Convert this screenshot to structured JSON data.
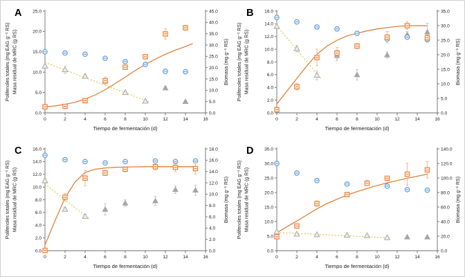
{
  "figure": {
    "x_title": "Tiempo de fermentación (d)",
    "y_left_title_line1": "Polifenoles totales (mg  EAG g⁻¹ RS)",
    "y_left_title_line2": "Masa residual de MRC (g RS)",
    "y_right_title": "Biomasa (mg g⁻¹ RS)"
  },
  "colors": {
    "blue": "#5B9BD5",
    "blue_fill": "#EAF1F9",
    "blue_err": "#9DC3E6",
    "orange": "#ED7D31",
    "orange_fill": "#FBEADC",
    "orange_err": "#F4B183",
    "trend": "#E0762C",
    "yellow_dash": "#E0CC4E",
    "gray_stroke": "#A8A8A8",
    "gray_open_fill": "#F1EFEA",
    "gray_fill": "#A8A6A2",
    "gray_err": "#C6C4C0",
    "axis": "#6b6b6b",
    "tick_text": "#1a1a1a"
  },
  "chart_data": [
    {
      "type": "scatter",
      "label": "A",
      "x_axis": {
        "min": 0,
        "max": 16,
        "step": 2
      },
      "y_left": {
        "min": 0,
        "max": 25,
        "step": 5
      },
      "y_right": {
        "min": 0,
        "max": 45,
        "step": 5
      },
      "dash_line": [
        [
          0,
          12.4
        ],
        [
          10.4,
          2.7
        ]
      ],
      "trend": [
        [
          0,
          1.5
        ],
        [
          1,
          1.7
        ],
        [
          2,
          2.1
        ],
        [
          3,
          2.6
        ],
        [
          4,
          3.4
        ],
        [
          5,
          4.4
        ],
        [
          6,
          5.7
        ],
        [
          7,
          7.2
        ],
        [
          8,
          8.8
        ],
        [
          9,
          10.4
        ],
        [
          10,
          11.9
        ],
        [
          11,
          13.2
        ],
        [
          12,
          14.4
        ],
        [
          13,
          15.4
        ],
        [
          14,
          16.3
        ],
        [
          14.7,
          17.0
        ]
      ],
      "series": [
        {
          "name": "open-triangles",
          "marker": "triangle-open",
          "axis": "left",
          "x": [
            0,
            2,
            4,
            6,
            8,
            10
          ],
          "y": [
            11.5,
            10.6,
            9.0,
            7.8,
            5.0,
            2.9
          ],
          "err": [
            0.5,
            0.9,
            0.4,
            0.4,
            0.4,
            0.3
          ]
        },
        {
          "name": "filled-triangles",
          "marker": "triangle-filled",
          "axis": "right",
          "x": [
            12,
            14
          ],
          "y": [
            11.0,
            5.0
          ],
          "err": [
            0.7,
            0.5
          ]
        },
        {
          "name": "blue-circles",
          "marker": "circle",
          "axis": "left",
          "x": [
            0,
            2,
            4,
            6,
            8,
            10,
            12,
            14
          ],
          "y": [
            15.0,
            14.7,
            14.4,
            13.4,
            12.6,
            11.9,
            10.2,
            10.1
          ],
          "err": [
            0.3,
            0.2,
            0.2,
            0.3,
            0.3,
            0.3,
            0.3,
            0.2
          ]
        },
        {
          "name": "orange-squares",
          "marker": "square",
          "axis": "left",
          "x": [
            0,
            2,
            4,
            6,
            8,
            10,
            12,
            14
          ],
          "y": [
            1.5,
            1.6,
            3.0,
            7.9,
            11.2,
            13.8,
            19.4,
            20.9
          ],
          "err": [
            0.3,
            0.2,
            0.3,
            0.9,
            0.5,
            0.6,
            1.3,
            0.6
          ]
        }
      ]
    },
    {
      "type": "scatter",
      "label": "B",
      "x_axis": {
        "min": 0,
        "max": 16,
        "step": 2
      },
      "y_left": {
        "min": 0,
        "max": 16,
        "step": 2
      },
      "y_right": {
        "min": 0,
        "max": 35,
        "step": 5
      },
      "dash_line": [
        [
          0,
          13.7
        ],
        [
          4.4,
          5.4
        ]
      ],
      "trend": [
        [
          0,
          1.4
        ],
        [
          1,
          3.4
        ],
        [
          2,
          5.4
        ],
        [
          3,
          7.4
        ],
        [
          4,
          9.2
        ],
        [
          5,
          10.5
        ],
        [
          6,
          11.4
        ],
        [
          7,
          12.1
        ],
        [
          8,
          12.5
        ],
        [
          9,
          12.9
        ],
        [
          10,
          13.2
        ],
        [
          11,
          13.4
        ],
        [
          12,
          13.6
        ],
        [
          13,
          13.7
        ],
        [
          14,
          13.7
        ],
        [
          15,
          13.7
        ]
      ],
      "series": [
        {
          "name": "open-triangles",
          "marker": "triangle-open",
          "axis": "left",
          "x": [
            0,
            2,
            4
          ],
          "y": [
            13.6,
            10.1,
            5.9
          ],
          "err": [
            0.4,
            0.5,
            0.7
          ]
        },
        {
          "name": "filled-triangles",
          "marker": "triangle-filled",
          "axis": "right",
          "x": [
            6,
            8,
            11,
            13,
            15
          ],
          "y": [
            19.7,
            13.1,
            19.9,
            26.9,
            27.8
          ],
          "err": [
            1.8,
            1.8,
            1.1,
            1.1,
            3.0
          ]
        },
        {
          "name": "blue-circles",
          "marker": "circle",
          "axis": "left",
          "x": [
            0,
            2,
            4,
            6,
            8,
            11,
            13,
            15
          ],
          "y": [
            15.0,
            14.3,
            13.5,
            13.2,
            12.5,
            11.6,
            11.9,
            11.5
          ],
          "err": [
            0.3,
            0.2,
            0.2,
            0.2,
            0.2,
            0.3,
            0.3,
            0.3
          ]
        },
        {
          "name": "orange-squares",
          "marker": "square",
          "axis": "left",
          "x": [
            0,
            2,
            4,
            6,
            8,
            11,
            13,
            15
          ],
          "y": [
            0.5,
            4.1,
            8.7,
            9.4,
            10.5,
            11.9,
            13.7,
            11.8
          ],
          "err": [
            0.2,
            0.5,
            1.3,
            0.9,
            0.4,
            0.9,
            0.6,
            0.5
          ]
        }
      ]
    },
    {
      "type": "scatter",
      "label": "C",
      "x_axis": {
        "min": 0,
        "max": 16,
        "step": 2
      },
      "y_left": {
        "min": 0,
        "max": 16,
        "step": 2
      },
      "y_right": {
        "min": 0,
        "max": 18,
        "step": 2
      },
      "dash_line": [
        [
          0,
          10.5
        ],
        [
          4.4,
          5.0
        ]
      ],
      "trend": [
        [
          0,
          0.9
        ],
        [
          1,
          4.7
        ],
        [
          2,
          8.3
        ],
        [
          3,
          10.8
        ],
        [
          4,
          12.3
        ],
        [
          5,
          12.8
        ],
        [
          6,
          13.0
        ],
        [
          7,
          13.1
        ],
        [
          8,
          13.15
        ],
        [
          10,
          13.2
        ],
        [
          12,
          13.2
        ],
        [
          15,
          13.2
        ]
      ],
      "series": [
        {
          "name": "open-triangles",
          "marker": "triangle-open",
          "axis": "left",
          "x": [
            0,
            2,
            4
          ],
          "y": [
            11.0,
            6.5,
            5.4
          ],
          "err": [
            0.4,
            0.3,
            0.3
          ]
        },
        {
          "name": "filled-triangles",
          "marker": "triangle-filled",
          "axis": "right",
          "x": [
            6,
            8,
            11,
            13,
            15
          ],
          "y": [
            7.3,
            8.4,
            8.8,
            10.8,
            10.7
          ],
          "err": [
            1.0,
            0.6,
            0.8,
            0.7,
            0.9
          ]
        },
        {
          "name": "blue-circles",
          "marker": "circle",
          "axis": "left",
          "x": [
            0,
            2,
            4,
            6,
            8,
            11,
            13,
            15
          ],
          "y": [
            15.0,
            14.3,
            14.0,
            13.8,
            14.0,
            14.1,
            14.0,
            14.1
          ],
          "err": [
            0.2,
            0.2,
            0.2,
            0.2,
            0.2,
            0.2,
            0.2,
            0.2
          ]
        },
        {
          "name": "orange-squares",
          "marker": "square",
          "axis": "left",
          "x": [
            0,
            2,
            4,
            6,
            8,
            11,
            13,
            15
          ],
          "y": [
            0.05,
            8.4,
            11.4,
            12.2,
            12.8,
            13.2,
            13.1,
            12.9
          ],
          "err": [
            0.1,
            0.6,
            1.2,
            0.4,
            0.4,
            0.5,
            0.7,
            0.9
          ]
        }
      ]
    },
    {
      "type": "scatter",
      "label": "D",
      "x_axis": {
        "min": 0,
        "max": 16,
        "step": 2
      },
      "y_left": {
        "min": 0,
        "max": 35,
        "step": 5
      },
      "y_right": {
        "min": 0,
        "max": 140,
        "step": 20
      },
      "dash_line": [
        [
          0,
          6.3
        ],
        [
          11.3,
          4.4
        ]
      ],
      "trend": [
        [
          0,
          6.2
        ],
        [
          1,
          8.2
        ],
        [
          2,
          10.2
        ],
        [
          3,
          12.3
        ],
        [
          4,
          14.4
        ],
        [
          5,
          16.2
        ],
        [
          6,
          17.7
        ],
        [
          7,
          19.1
        ],
        [
          8,
          20.3
        ],
        [
          9,
          21.4
        ],
        [
          10,
          22.4
        ],
        [
          11,
          23.3
        ],
        [
          12,
          24.1
        ],
        [
          13,
          24.9
        ],
        [
          14,
          25.6
        ],
        [
          15,
          26.3
        ]
      ],
      "series": [
        {
          "name": "open-triangles",
          "marker": "triangle-open",
          "axis": "left",
          "x": [
            0,
            2,
            4,
            7,
            9,
            11
          ],
          "y": [
            6.5,
            5.7,
            5.5,
            5.3,
            5.2,
            4.5
          ],
          "err": [
            0.3,
            0.3,
            0.3,
            0.3,
            0.3,
            0.2
          ]
        },
        {
          "name": "filled-triangles",
          "marker": "triangle-filled",
          "axis": "right",
          "x": [
            13,
            15
          ],
          "y": [
            18.8,
            18.8
          ],
          "err": [
            1.2,
            1.2
          ]
        },
        {
          "name": "blue-circles",
          "marker": "circle",
          "axis": "left",
          "x": [
            0,
            2,
            4,
            7,
            9,
            11,
            13,
            15
          ],
          "y": [
            30.0,
            26.7,
            24.1,
            22.9,
            23.3,
            22.2,
            21.0,
            20.8
          ],
          "err": [
            0.4,
            0.7,
            0.5,
            0.4,
            0.4,
            0.4,
            0.5,
            0.5
          ]
        },
        {
          "name": "orange-squares",
          "marker": "square",
          "axis": "left",
          "x": [
            0,
            2,
            4,
            7,
            9,
            11,
            13,
            15
          ],
          "y": [
            4.8,
            8.5,
            16.2,
            19.3,
            23.2,
            24.9,
            26.3,
            27.8
          ],
          "err": [
            0.6,
            0.4,
            0.9,
            0.8,
            0.8,
            0.6,
            3.8,
            2.8
          ]
        }
      ]
    }
  ]
}
